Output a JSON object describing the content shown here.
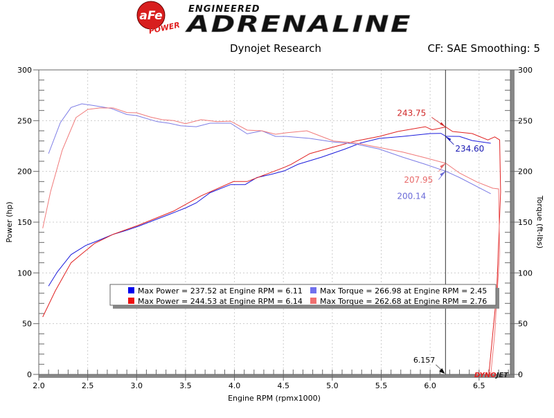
{
  "logo": {
    "badge": "aFe",
    "badge_sub": "POWER",
    "line1": "ENGINEERED",
    "line2": "ADRENALINE"
  },
  "header": {
    "left": "Dynojet Research",
    "right": "CF: SAE Smoothing: 5"
  },
  "watermark": "DYNOJET",
  "colors": {
    "power_blue": "#1a1adc",
    "power_red": "#e02020",
    "torque_blue": "#7c7ce6",
    "torque_red": "#f07878"
  },
  "chart_data": {
    "type": "line",
    "xlabel": "Engine RPM (rpmx1000)",
    "ylabel": "Power (hp)",
    "y2label": "Torque (ft-lbs)",
    "xlim": [
      2.0,
      6.82
    ],
    "ylim": [
      0,
      300
    ],
    "y2lim": [
      0,
      300
    ],
    "xticks": [
      "2.0",
      "2.5",
      "3.0",
      "3.5",
      "4.0",
      "4.5",
      "5.0",
      "5.5",
      "6.0",
      "6.5"
    ],
    "yticks": [
      "0",
      "50",
      "100",
      "150",
      "200",
      "250",
      "300"
    ],
    "grid": true,
    "cursor": {
      "x": 6.157,
      "label": "6.157"
    },
    "series": [
      {
        "id": "power_blue",
        "color": "#1a1adc",
        "points": [
          [
            2.1,
            87
          ],
          [
            2.19,
            101
          ],
          [
            2.33,
            118
          ],
          [
            2.48,
            127
          ],
          [
            2.6,
            131.6
          ],
          [
            2.76,
            138
          ],
          [
            2.9,
            142
          ],
          [
            3.02,
            146
          ],
          [
            3.18,
            152
          ],
          [
            3.33,
            157.5
          ],
          [
            3.5,
            164
          ],
          [
            3.61,
            169
          ],
          [
            3.75,
            179
          ],
          [
            3.96,
            187
          ],
          [
            4.11,
            187
          ],
          [
            4.23,
            194
          ],
          [
            4.37,
            197
          ],
          [
            4.51,
            200.5
          ],
          [
            4.65,
            207
          ],
          [
            4.89,
            214
          ],
          [
            5.13,
            222
          ],
          [
            5.29,
            228
          ],
          [
            5.48,
            232.5
          ],
          [
            5.72,
            234.5
          ],
          [
            6.0,
            237.3
          ],
          [
            6.11,
            237.5
          ],
          [
            6.16,
            234.6
          ],
          [
            6.3,
            234.5
          ],
          [
            6.43,
            230.4
          ],
          [
            6.62,
            227.7
          ]
        ]
      },
      {
        "id": "power_red",
        "color": "#e02020",
        "points": [
          [
            2.04,
            56.6
          ],
          [
            2.17,
            82.5
          ],
          [
            2.33,
            110
          ],
          [
            2.43,
            118
          ],
          [
            2.57,
            129
          ],
          [
            2.76,
            138
          ],
          [
            3.02,
            147
          ],
          [
            3.38,
            161
          ],
          [
            3.66,
            176
          ],
          [
            3.99,
            190
          ],
          [
            4.13,
            190
          ],
          [
            4.51,
            204
          ],
          [
            4.58,
            207
          ],
          [
            4.77,
            217.5
          ],
          [
            5.01,
            224
          ],
          [
            5.24,
            230
          ],
          [
            5.48,
            234.5
          ],
          [
            5.67,
            239.3
          ],
          [
            5.95,
            244
          ],
          [
            6.02,
            241
          ],
          [
            6.16,
            243.75
          ],
          [
            6.23,
            239.3
          ],
          [
            6.43,
            237.3
          ],
          [
            6.59,
            231
          ],
          [
            6.66,
            234
          ],
          [
            6.71,
            231
          ],
          [
            6.72,
            180
          ],
          [
            6.68,
            80
          ],
          [
            6.6,
            0
          ]
        ]
      },
      {
        "id": "torque_blue",
        "color": "#7c7ce6",
        "points": [
          [
            2.1,
            217.5
          ],
          [
            2.22,
            248
          ],
          [
            2.33,
            263
          ],
          [
            2.44,
            266.6
          ],
          [
            2.55,
            265
          ],
          [
            2.74,
            262
          ],
          [
            2.9,
            256
          ],
          [
            3.0,
            255
          ],
          [
            3.21,
            249
          ],
          [
            3.33,
            247.5
          ],
          [
            3.45,
            245
          ],
          [
            3.61,
            244
          ],
          [
            3.75,
            247.5
          ],
          [
            3.96,
            247.5
          ],
          [
            4.13,
            237
          ],
          [
            4.28,
            240
          ],
          [
            4.42,
            234.5
          ],
          [
            4.53,
            234.5
          ],
          [
            4.77,
            232.5
          ],
          [
            5.01,
            229
          ],
          [
            5.24,
            227
          ],
          [
            5.48,
            222
          ],
          [
            5.72,
            214
          ],
          [
            5.95,
            207
          ],
          [
            6.16,
            200.1
          ],
          [
            6.3,
            194
          ],
          [
            6.62,
            178
          ]
        ]
      },
      {
        "id": "torque_red",
        "color": "#f07878",
        "points": [
          [
            2.04,
            144
          ],
          [
            2.12,
            180
          ],
          [
            2.24,
            221
          ],
          [
            2.38,
            253
          ],
          [
            2.5,
            261
          ],
          [
            2.62,
            262.5
          ],
          [
            2.76,
            262.5
          ],
          [
            2.9,
            258
          ],
          [
            3.0,
            257.7
          ],
          [
            3.14,
            253.6
          ],
          [
            3.26,
            251
          ],
          [
            3.38,
            250
          ],
          [
            3.5,
            247
          ],
          [
            3.66,
            251
          ],
          [
            3.82,
            249
          ],
          [
            3.96,
            249.5
          ],
          [
            4.13,
            240.7
          ],
          [
            4.28,
            240
          ],
          [
            4.42,
            236.6
          ],
          [
            4.53,
            238
          ],
          [
            4.74,
            240
          ],
          [
            5.01,
            230
          ],
          [
            5.24,
            228
          ],
          [
            5.48,
            223.6
          ],
          [
            5.72,
            219
          ],
          [
            5.95,
            213.4
          ],
          [
            6.16,
            207.95
          ],
          [
            6.3,
            198.4
          ],
          [
            6.48,
            189.5
          ],
          [
            6.64,
            183.4
          ],
          [
            6.7,
            182.7
          ],
          [
            6.71,
            120
          ],
          [
            6.66,
            40
          ],
          [
            6.62,
            0
          ]
        ]
      }
    ],
    "annotations": [
      {
        "text": "243.75",
        "x": 6.157,
        "y": 243.75,
        "color": "#d02828"
      },
      {
        "text": "234.60",
        "x": 6.157,
        "y": 234.6,
        "color": "#1a1ab4"
      },
      {
        "text": "207.95",
        "x": 6.157,
        "y": 207.95,
        "color": "#e86a6a"
      },
      {
        "text": "200.14",
        "x": 6.157,
        "y": 200.14,
        "color": "#6a6ad8"
      }
    ],
    "legend": {
      "placement": "bottom-center",
      "entries": [
        {
          "color": "#0000ee",
          "text": "Max Power = 237.52 at Engine RPM = 6.11"
        },
        {
          "color": "#7070ee",
          "text": "Max Torque = 266.98 at Engine RPM = 2.45"
        },
        {
          "color": "#ee1010",
          "text": "Max Power = 244.53 at Engine RPM = 6.14"
        },
        {
          "color": "#f07070",
          "text": "Max Torque = 262.68 at Engine RPM = 2.76"
        }
      ]
    }
  }
}
